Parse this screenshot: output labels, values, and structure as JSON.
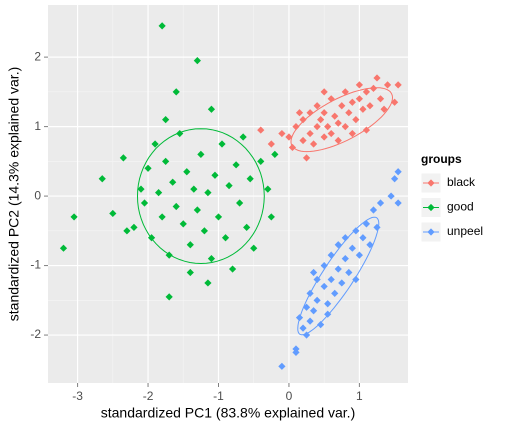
{
  "chart_data": {
    "type": "scatter",
    "xlabel": "standardized PC1 (83.8% explained var.)",
    "ylabel": "standardized PC2 (14.3% explained var.)",
    "legend_title": "groups",
    "legend": "right",
    "grid": true,
    "xlim": [
      -3.42,
      1.69
    ],
    "ylim": [
      -2.69,
      2.75
    ],
    "xticks": [
      -3,
      -2,
      -1,
      0,
      1
    ],
    "yticks": [
      -2,
      -1,
      0,
      1,
      2
    ],
    "series": [
      {
        "name": "black",
        "color": "#F8766D",
        "ellipse": {
          "cx": 0.75,
          "cy": 1.1,
          "a": 0.8,
          "b": 0.3,
          "angle": 28
        },
        "x": [
          -0.4,
          -0.1,
          0,
          0.05,
          0.1,
          0.2,
          0.2,
          0.3,
          0.3,
          0.35,
          0.4,
          0.4,
          0.45,
          0.5,
          0.5,
          0.55,
          0.6,
          0.6,
          0.65,
          0.7,
          0.7,
          0.75,
          0.8,
          0.8,
          0.85,
          0.9,
          0.9,
          0.95,
          1.0,
          1.0,
          1.05,
          1.1,
          1.1,
          1.15,
          1.2,
          1.25,
          1.3,
          1.35,
          1.4,
          1.5,
          1.55,
          0.25,
          -0.25,
          0.5,
          0.15
        ],
        "values": [
          0.95,
          0.9,
          0.85,
          0.7,
          1.0,
          0.8,
          1.1,
          0.9,
          1.2,
          0.75,
          1.0,
          1.3,
          1.1,
          0.85,
          1.2,
          1.0,
          1.4,
          0.9,
          1.15,
          1.05,
          0.8,
          1.3,
          1.0,
          1.5,
          1.2,
          0.9,
          1.35,
          1.1,
          1.4,
          1.6,
          1.25,
          1.5,
          0.95,
          1.3,
          1.55,
          1.7,
          1.4,
          1.25,
          1.6,
          1.35,
          1.6,
          0.55,
          0.75,
          1.5,
          1.2
        ]
      },
      {
        "name": "good",
        "color": "#00BA38",
        "ellipse": {
          "cx": -1.25,
          "cy": 0.0,
          "a": 0.9,
          "b": 0.97,
          "angle": 0
        },
        "x": [
          -3.2,
          -3.05,
          -2.65,
          -2.5,
          -2.35,
          -2.3,
          -2.2,
          -2.1,
          -2.05,
          -2.0,
          -1.95,
          -1.9,
          -1.85,
          -1.8,
          -1.75,
          -1.7,
          -1.7,
          -1.65,
          -1.6,
          -1.55,
          -1.5,
          -1.45,
          -1.4,
          -1.35,
          -1.3,
          -1.25,
          -1.2,
          -1.15,
          -1.1,
          -1.05,
          -1.0,
          -0.95,
          -0.9,
          -0.85,
          -0.8,
          -0.75,
          -0.7,
          -0.65,
          -0.6,
          -0.55,
          -0.5,
          -0.4,
          -0.3,
          -0.25,
          -1.15,
          -1.8,
          -1.1,
          -1.3,
          -1.6,
          -1.75,
          -0.2,
          -1.4
        ],
        "values": [
          -0.75,
          -0.3,
          0.25,
          -0.25,
          0.55,
          -0.5,
          -0.45,
          0.1,
          -0.1,
          0.4,
          -0.6,
          0.75,
          0.05,
          -0.3,
          0.5,
          -0.85,
          -1.45,
          0.2,
          -0.15,
          0.9,
          -0.4,
          0.35,
          -0.7,
          0.1,
          -0.2,
          0.6,
          -0.5,
          0.05,
          -0.9,
          0.3,
          -0.3,
          0.75,
          -0.6,
          0.15,
          -1.05,
          0.45,
          -0.1,
          0.85,
          -0.45,
          0.25,
          -0.75,
          0.5,
          0.1,
          -0.3,
          -1.25,
          2.45,
          1.25,
          1.95,
          1.5,
          1.1,
          0.6,
          -1.1
        ]
      },
      {
        "name": "unpeel",
        "color": "#619CFF",
        "ellipse": {
          "cx": 0.7,
          "cy": -1.15,
          "a": 1.0,
          "b": 0.22,
          "angle": 57
        },
        "x": [
          -0.1,
          0.1,
          0.15,
          0.2,
          0.25,
          0.3,
          0.3,
          0.35,
          0.4,
          0.4,
          0.45,
          0.5,
          0.5,
          0.55,
          0.6,
          0.6,
          0.65,
          0.7,
          0.7,
          0.75,
          0.8,
          0.8,
          0.85,
          0.9,
          0.95,
          1.0,
          1.05,
          1.1,
          1.15,
          1.2,
          1.25,
          1.3,
          1.45,
          1.55,
          1.5,
          1.55,
          0.25,
          0.55,
          0.95,
          0.35,
          0.1
        ],
        "values": [
          -2.45,
          -2.2,
          -1.75,
          -1.9,
          -1.6,
          -1.8,
          -1.4,
          -1.65,
          -1.2,
          -1.5,
          -1.85,
          -1.3,
          -1.0,
          -1.55,
          -1.2,
          -0.85,
          -1.4,
          -1.05,
          -0.7,
          -1.25,
          -0.9,
          -0.6,
          -1.1,
          -0.75,
          -0.5,
          -0.85,
          -0.6,
          -0.4,
          -0.7,
          -0.2,
          -0.45,
          -0.1,
          0.0,
          -0.1,
          0.25,
          0.35,
          -2.0,
          -1.7,
          -1.2,
          -1.1,
          -2.25
        ]
      }
    ]
  }
}
